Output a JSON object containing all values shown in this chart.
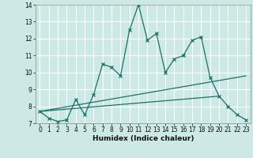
{
  "title": "",
  "xlabel": "Humidex (Indice chaleur)",
  "xlim": [
    -0.5,
    23.5
  ],
  "ylim": [
    7,
    14
  ],
  "yticks": [
    7,
    8,
    9,
    10,
    11,
    12,
    13,
    14
  ],
  "xticks": [
    0,
    1,
    2,
    3,
    4,
    5,
    6,
    7,
    8,
    9,
    10,
    11,
    12,
    13,
    14,
    15,
    16,
    17,
    18,
    19,
    20,
    21,
    22,
    23
  ],
  "bg_color": "#cce9e5",
  "line_color": "#1d7068",
  "grid_color": "#ffffff",
  "lines": [
    {
      "x": [
        0,
        1,
        2,
        3,
        4,
        5,
        6,
        7,
        8,
        9,
        10,
        11,
        12,
        13,
        14,
        15,
        16,
        17,
        18,
        19,
        20,
        21,
        22,
        23
      ],
      "y": [
        7.7,
        7.3,
        7.1,
        7.2,
        8.4,
        7.5,
        8.7,
        10.5,
        10.3,
        9.8,
        12.5,
        14.0,
        11.9,
        12.3,
        10.0,
        10.8,
        11.0,
        11.9,
        12.1,
        9.7,
        8.6,
        8.0,
        7.5,
        7.2
      ],
      "style": "solid",
      "marker": true
    },
    {
      "x": [
        0,
        23
      ],
      "y": [
        7.7,
        9.8
      ],
      "style": "solid",
      "marker": false
    },
    {
      "x": [
        0,
        20
      ],
      "y": [
        7.7,
        8.6
      ],
      "style": "solid",
      "marker": false
    }
  ]
}
